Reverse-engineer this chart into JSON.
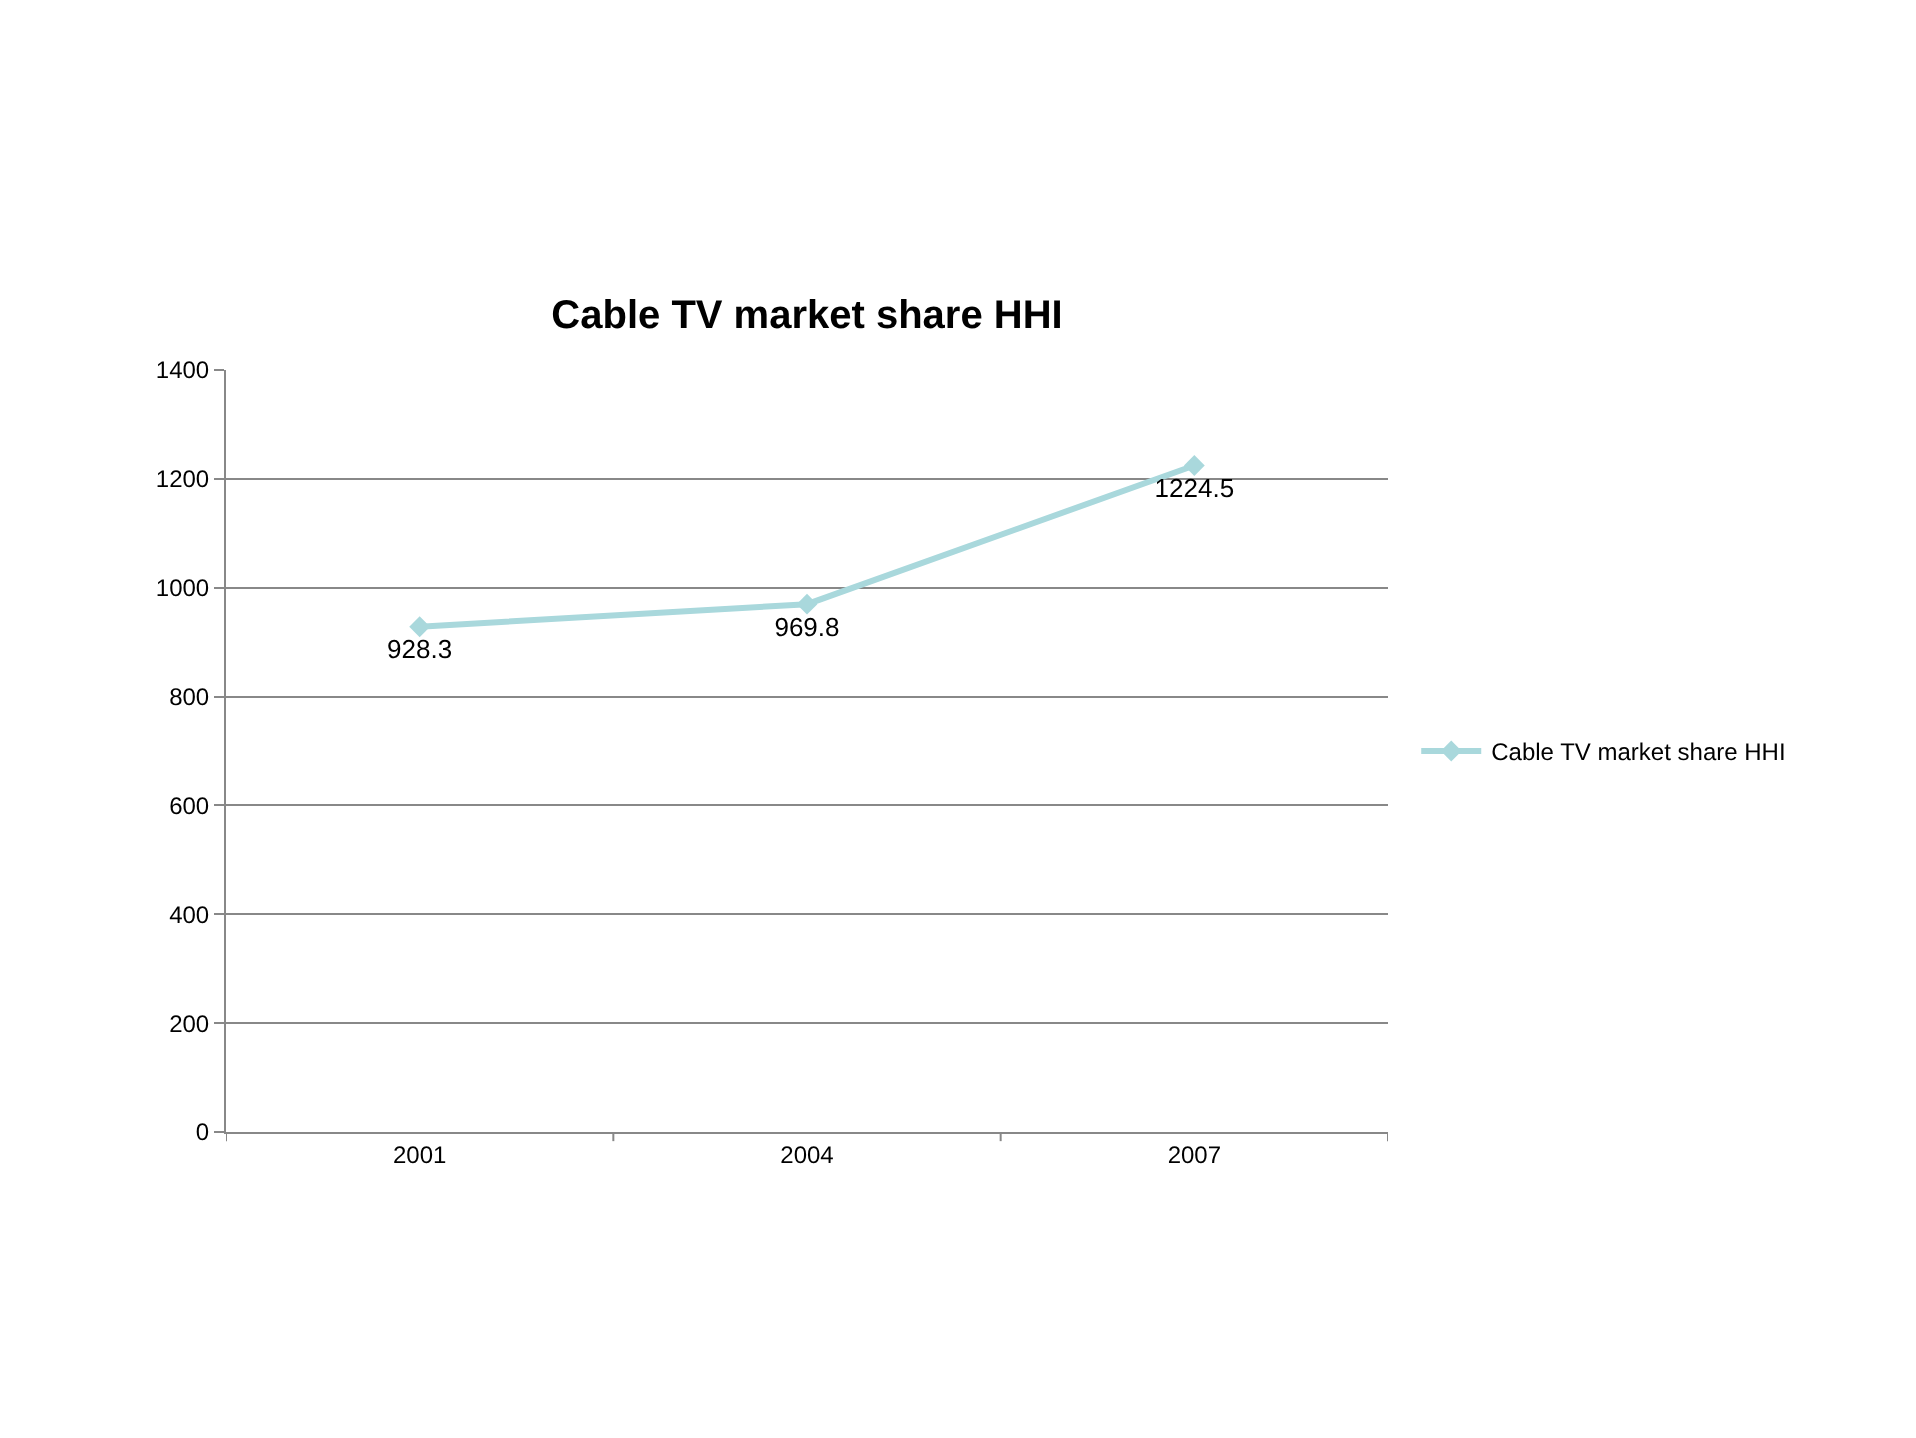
{
  "chart_data": {
    "type": "line",
    "title": "Cable TV market share HHI",
    "categories": [
      "2001",
      "2004",
      "2007"
    ],
    "series": [
      {
        "name": "Cable TV market share HHI",
        "color": "#a9d8dc",
        "values": [
          928.3,
          969.8,
          1224.5
        ]
      }
    ],
    "ylim": [
      0,
      1400
    ],
    "yticks": [
      0,
      200,
      400,
      600,
      800,
      1000,
      1200,
      1400
    ],
    "grid": "y",
    "legend": "right",
    "marker": "diamond",
    "line_style": "solid",
    "data_labels": true
  }
}
